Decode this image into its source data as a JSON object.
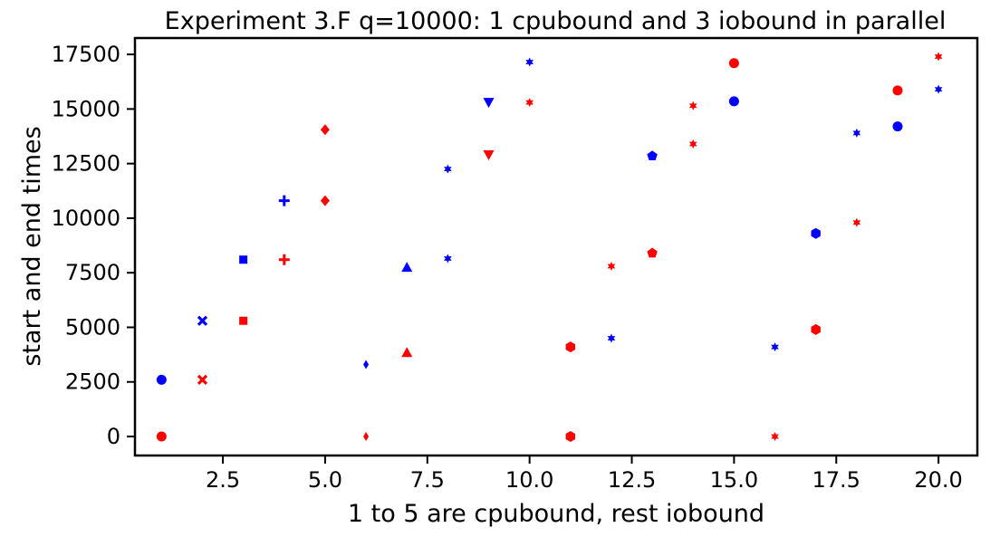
{
  "chart_data": {
    "type": "scatter",
    "title": "Experiment 3.F q=10000: 1 cpubound and 3 iobound in parallel",
    "xlabel": "1 to 5 are cpubound, rest iobound",
    "ylabel": "start and end times",
    "xlim": [
      0.35,
      20.95
    ],
    "ylim": [
      -870,
      18250
    ],
    "xticks": [
      2.5,
      5.0,
      7.5,
      10.0,
      12.5,
      15.0,
      17.5,
      20.0
    ],
    "xtick_labels": [
      "2.5",
      "5.0",
      "7.5",
      "10.0",
      "12.5",
      "15.0",
      "17.5",
      "20.0"
    ],
    "yticks": [
      0,
      2500,
      5000,
      7500,
      10000,
      12500,
      15000,
      17500
    ],
    "ytick_labels": [
      "0",
      "2500",
      "5000",
      "7500",
      "10000",
      "12500",
      "15000",
      "17500"
    ],
    "grid": false,
    "colors": {
      "start": "#ff0000",
      "end": "#0000ff"
    },
    "series": [
      {
        "color": "#ff0000",
        "points": [
          {
            "x": 1,
            "y": 0,
            "marker": "circle"
          },
          {
            "x": 2,
            "y": 2600,
            "marker": "x"
          },
          {
            "x": 3,
            "y": 5300,
            "marker": "square"
          },
          {
            "x": 4,
            "y": 8100,
            "marker": "plus"
          },
          {
            "x": 5,
            "y": 10800,
            "marker": "diamond"
          },
          {
            "x": 5,
            "y": 14050,
            "marker": "diamond"
          },
          {
            "x": 6,
            "y": 0,
            "marker": "thin-diamond"
          },
          {
            "x": 7,
            "y": 3850,
            "marker": "triangle-up"
          },
          {
            "x": 9,
            "y": 12900,
            "marker": "triangle-down"
          },
          {
            "x": 10,
            "y": 15300,
            "marker": "star"
          },
          {
            "x": 11,
            "y": 0,
            "marker": "hexagon"
          },
          {
            "x": 11,
            "y": 4100,
            "marker": "hexagon"
          },
          {
            "x": 12,
            "y": 7800,
            "marker": "star"
          },
          {
            "x": 13,
            "y": 8400,
            "marker": "pentagon"
          },
          {
            "x": 14,
            "y": 13400,
            "marker": "star"
          },
          {
            "x": 14,
            "y": 15150,
            "marker": "star"
          },
          {
            "x": 15,
            "y": 17100,
            "marker": "circle"
          },
          {
            "x": 16,
            "y": 0,
            "marker": "star"
          },
          {
            "x": 17,
            "y": 4900,
            "marker": "hexagon"
          },
          {
            "x": 18,
            "y": 9800,
            "marker": "star"
          },
          {
            "x": 19,
            "y": 15850,
            "marker": "circle"
          },
          {
            "x": 20,
            "y": 17400,
            "marker": "star"
          }
        ]
      },
      {
        "color": "#0000ff",
        "points": [
          {
            "x": 1,
            "y": 2600,
            "marker": "circle"
          },
          {
            "x": 2,
            "y": 5300,
            "marker": "x"
          },
          {
            "x": 3,
            "y": 8100,
            "marker": "square"
          },
          {
            "x": 4,
            "y": 10800,
            "marker": "plus"
          },
          {
            "x": 6,
            "y": 3300,
            "marker": "thin-diamond"
          },
          {
            "x": 7,
            "y": 7750,
            "marker": "triangle-up"
          },
          {
            "x": 8,
            "y": 8150,
            "marker": "star"
          },
          {
            "x": 8,
            "y": 12250,
            "marker": "star"
          },
          {
            "x": 9,
            "y": 15300,
            "marker": "triangle-down"
          },
          {
            "x": 10,
            "y": 17150,
            "marker": "star"
          },
          {
            "x": 12,
            "y": 4500,
            "marker": "star"
          },
          {
            "x": 13,
            "y": 12850,
            "marker": "pentagon"
          },
          {
            "x": 15,
            "y": 15350,
            "marker": "circle"
          },
          {
            "x": 16,
            "y": 4100,
            "marker": "star"
          },
          {
            "x": 17,
            "y": 9300,
            "marker": "hexagon"
          },
          {
            "x": 18,
            "y": 13900,
            "marker": "star"
          },
          {
            "x": 19,
            "y": 14200,
            "marker": "circle"
          },
          {
            "x": 20,
            "y": 15900,
            "marker": "star"
          }
        ]
      }
    ]
  }
}
